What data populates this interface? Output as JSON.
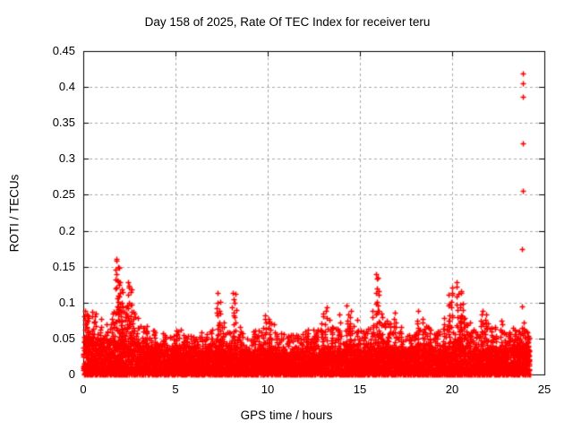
{
  "chart_data": {
    "type": "scatter",
    "title": "Day 158 of 2025, Rate Of TEC Index for receiver teru",
    "xlabel": "GPS time / hours",
    "ylabel": "ROTI / TECUs",
    "xlim": [
      0,
      25
    ],
    "ylim": [
      0,
      0.45
    ],
    "xticks": [
      0,
      5,
      10,
      15,
      20,
      25
    ],
    "yticks": [
      0,
      0.05,
      0.1,
      0.15,
      0.2,
      0.25,
      0.3,
      0.35,
      0.4,
      0.45
    ],
    "grid": true,
    "legend": false,
    "marker": "plus",
    "marker_color": "#ff0000",
    "grid_color": "#a9a9a9",
    "border_color": "#000000",
    "background_color": "#ffffff",
    "x_data_range": [
      0.02,
      24.2
    ],
    "description": "Dense scatter of ROTI values vs GPS time; solid band below ~0.05 TECUs with sporadic spike clusters and a few high outliers near hour 23.8",
    "base_bins": {
      "step": 0.5,
      "start": 0,
      "solid_top": [
        0.05,
        0.048,
        0.04,
        0.045,
        0.048,
        0.046,
        0.04,
        0.036,
        0.034,
        0.032,
        0.035,
        0.032,
        0.032,
        0.033,
        0.036,
        0.036,
        0.038,
        0.032,
        0.032,
        0.034,
        0.034,
        0.03,
        0.03,
        0.031,
        0.033,
        0.034,
        0.036,
        0.034,
        0.035,
        0.037,
        0.034,
        0.035,
        0.04,
        0.035,
        0.034,
        0.032,
        0.035,
        0.036,
        0.033,
        0.038,
        0.044,
        0.04,
        0.035,
        0.037,
        0.035,
        0.034,
        0.034,
        0.038,
        0.042
      ],
      "speckle_top": [
        0.09,
        0.085,
        0.065,
        0.088,
        0.096,
        0.088,
        0.068,
        0.062,
        0.058,
        0.054,
        0.062,
        0.054,
        0.053,
        0.056,
        0.064,
        0.068,
        0.068,
        0.058,
        0.062,
        0.068,
        0.072,
        0.058,
        0.056,
        0.058,
        0.062,
        0.064,
        0.076,
        0.066,
        0.072,
        0.078,
        0.066,
        0.068,
        0.078,
        0.072,
        0.066,
        0.056,
        0.066,
        0.072,
        0.062,
        0.076,
        0.086,
        0.082,
        0.062,
        0.076,
        0.066,
        0.062,
        0.062,
        0.068,
        0.062
      ]
    },
    "spikes": [
      [
        0.08,
        0.045,
        0.088
      ],
      [
        0.25,
        0.05,
        0.082
      ],
      [
        0.55,
        0.045,
        0.078
      ],
      [
        0.9,
        0.04,
        0.062
      ],
      [
        1.3,
        0.045,
        0.07
      ],
      [
        1.6,
        0.05,
        0.09
      ],
      [
        1.78,
        0.06,
        0.168
      ],
      [
        1.88,
        0.065,
        0.152
      ],
      [
        1.98,
        0.06,
        0.128
      ],
      [
        2.1,
        0.055,
        0.118
      ],
      [
        2.3,
        0.05,
        0.095
      ],
      [
        2.45,
        0.065,
        0.131
      ],
      [
        2.58,
        0.055,
        0.118
      ],
      [
        2.75,
        0.05,
        0.09
      ],
      [
        3.3,
        0.045,
        0.068
      ],
      [
        3.9,
        0.04,
        0.058
      ],
      [
        4.4,
        0.038,
        0.055
      ],
      [
        5.05,
        0.04,
        0.063
      ],
      [
        5.5,
        0.038,
        0.054
      ],
      [
        6.0,
        0.038,
        0.052
      ],
      [
        6.45,
        0.04,
        0.058
      ],
      [
        6.9,
        0.042,
        0.06
      ],
      [
        7.28,
        0.055,
        0.113
      ],
      [
        7.42,
        0.05,
        0.102
      ],
      [
        7.6,
        0.045,
        0.072
      ],
      [
        8.12,
        0.055,
        0.116
      ],
      [
        8.24,
        0.06,
        0.112
      ],
      [
        8.5,
        0.04,
        0.06
      ],
      [
        9.3,
        0.04,
        0.062
      ],
      [
        9.85,
        0.045,
        0.086
      ],
      [
        10.05,
        0.045,
        0.079
      ],
      [
        10.5,
        0.038,
        0.056
      ],
      [
        11.1,
        0.038,
        0.055
      ],
      [
        11.6,
        0.04,
        0.058
      ],
      [
        12.15,
        0.04,
        0.062
      ],
      [
        12.6,
        0.04,
        0.06
      ],
      [
        12.95,
        0.045,
        0.088
      ],
      [
        13.15,
        0.045,
        0.093
      ],
      [
        13.5,
        0.04,
        0.065
      ],
      [
        13.9,
        0.045,
        0.083
      ],
      [
        14.3,
        0.045,
        0.096
      ],
      [
        14.5,
        0.045,
        0.088
      ],
      [
        14.9,
        0.04,
        0.062
      ],
      [
        15.3,
        0.04,
        0.06
      ],
      [
        15.7,
        0.045,
        0.088
      ],
      [
        15.92,
        0.065,
        0.141
      ],
      [
        16.02,
        0.06,
        0.118
      ],
      [
        16.2,
        0.05,
        0.085
      ],
      [
        16.55,
        0.04,
        0.06
      ],
      [
        16.9,
        0.045,
        0.086
      ],
      [
        17.2,
        0.04,
        0.06
      ],
      [
        17.7,
        0.038,
        0.055
      ],
      [
        18.15,
        0.045,
        0.088
      ],
      [
        18.4,
        0.045,
        0.08
      ],
      [
        18.8,
        0.04,
        0.058
      ],
      [
        19.2,
        0.04,
        0.06
      ],
      [
        19.55,
        0.045,
        0.078
      ],
      [
        19.8,
        0.055,
        0.111
      ],
      [
        20.0,
        0.06,
        0.124
      ],
      [
        20.28,
        0.065,
        0.129
      ],
      [
        20.45,
        0.055,
        0.116
      ],
      [
        20.62,
        0.05,
        0.098
      ],
      [
        20.8,
        0.045,
        0.07
      ],
      [
        21.3,
        0.04,
        0.06
      ],
      [
        21.62,
        0.045,
        0.09
      ],
      [
        21.82,
        0.045,
        0.086
      ],
      [
        22.2,
        0.04,
        0.06
      ],
      [
        22.65,
        0.05,
        0.076
      ],
      [
        23.1,
        0.04,
        0.058
      ],
      [
        23.35,
        0.04,
        0.066
      ],
      [
        23.65,
        0.04,
        0.06
      ],
      [
        23.95,
        0.042,
        0.072
      ],
      [
        24.1,
        0.04,
        0.058
      ]
    ],
    "outliers": [
      [
        23.85,
        0.419
      ],
      [
        23.82,
        0.405
      ],
      [
        23.85,
        0.386
      ],
      [
        23.83,
        0.321
      ],
      [
        23.82,
        0.255
      ],
      [
        23.8,
        0.174
      ],
      [
        23.8,
        0.095
      ]
    ]
  }
}
